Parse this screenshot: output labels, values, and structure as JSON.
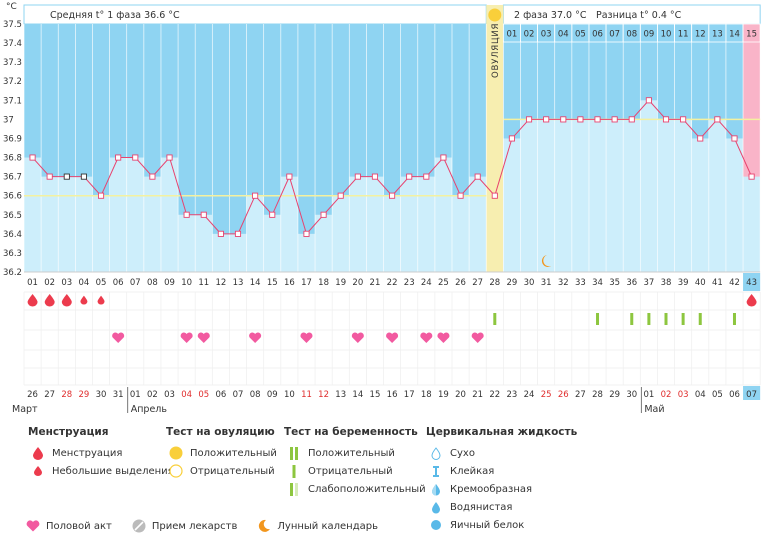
{
  "chart_data": {
    "type": "line",
    "unit_label": "°C",
    "y_ticks": [
      "37.5",
      "37.4",
      "37.3",
      "37.2",
      "37.1",
      "37",
      "36.9",
      "36.8",
      "36.7",
      "36.6",
      "36.5",
      "36.4",
      "36.3",
      "36.2"
    ],
    "ylim": [
      36.2,
      37.5
    ],
    "cycle_days": [
      "01",
      "02",
      "03",
      "04",
      "05",
      "06",
      "07",
      "08",
      "09",
      "10",
      "11",
      "12",
      "13",
      "14",
      "15",
      "16",
      "17",
      "18",
      "19",
      "20",
      "21",
      "22",
      "23",
      "24",
      "25",
      "26",
      "27",
      "28",
      "29",
      "30",
      "31",
      "32",
      "33",
      "34",
      "35",
      "36",
      "37",
      "38",
      "39",
      "40",
      "41",
      "42",
      "43"
    ],
    "temperatures": [
      36.8,
      36.7,
      36.7,
      36.7,
      36.6,
      36.8,
      36.8,
      36.7,
      36.8,
      36.5,
      36.5,
      36.4,
      36.4,
      36.6,
      36.5,
      36.7,
      36.4,
      36.5,
      36.6,
      36.7,
      36.7,
      36.6,
      36.7,
      36.7,
      36.8,
      36.6,
      36.7,
      36.6,
      36.9,
      37.0,
      37.0,
      37.0,
      37.0,
      37.0,
      37.0,
      37.0,
      37.1,
      37.0,
      37.0,
      36.9,
      37.0,
      36.9,
      36.7
    ],
    "phase1": {
      "label": "Средняя t° 1 фаза",
      "value": "36.6 °C",
      "average": 36.6
    },
    "phase2": {
      "label": "2 фаза",
      "value": "37.0 °C",
      "average": 37.0,
      "diff_label": "Разница t°",
      "diff_value": "0.4 °C"
    },
    "ovulation": {
      "label": "ОВУЛЯЦИЯ",
      "day": 28
    },
    "phase2_days": [
      "01",
      "02",
      "03",
      "04",
      "05",
      "06",
      "07",
      "08",
      "09",
      "10",
      "11",
      "12",
      "13",
      "14",
      "15"
    ],
    "calendar_dates": [
      "26",
      "27",
      "28",
      "29",
      "30",
      "31",
      "01",
      "02",
      "03",
      "04",
      "05",
      "06",
      "07",
      "08",
      "09",
      "10",
      "11",
      "12",
      "13",
      "14",
      "15",
      "16",
      "17",
      "18",
      "19",
      "20",
      "21",
      "22",
      "23",
      "24",
      "25",
      "26",
      "27",
      "28",
      "29",
      "30",
      "01",
      "02",
      "03",
      "04",
      "05",
      "06",
      "07"
    ],
    "weekend_dates_idx": [
      2,
      3,
      9,
      10,
      16,
      17,
      30,
      31,
      37,
      38
    ],
    "months": [
      {
        "label": "Март",
        "start": 0
      },
      {
        "label": "Апрель",
        "start": 6
      },
      {
        "label": "Май",
        "start": 36
      }
    ],
    "menstruation": {
      "big": [
        1,
        2,
        3
      ],
      "small": [
        4,
        5
      ],
      "next": [
        43
      ]
    },
    "intercourse": [
      6,
      10,
      11,
      14,
      17,
      20,
      22,
      24,
      25,
      27
    ],
    "pregnancy_tests_negative": [
      28,
      34,
      36,
      37,
      38,
      39,
      40,
      42
    ],
    "moon_day": 31
  },
  "legend": {
    "menstruation": {
      "title": "Менструация",
      "items": [
        "Менструация",
        "Небольшие выделения"
      ]
    },
    "ovulation_test": {
      "title": "Тест на овуляцию",
      "items": [
        "Положительный",
        "Отрицательный"
      ]
    },
    "pregnancy_test": {
      "title": "Тест на беременность",
      "items": [
        "Положительный",
        "Отрицательный",
        "Слабоположительный"
      ]
    },
    "cervical": {
      "title": "Цервикальная жидкость",
      "items": [
        "Сухо",
        "Клейкая",
        "Кремообразная",
        "Водянистая",
        "Яичный белок"
      ]
    },
    "bottom": [
      "Половой акт",
      "Прием лекарств",
      "Лунный календарь"
    ]
  },
  "colors": {
    "phase_blue": "#8fd4f2",
    "bar_fill": "#cdeefb",
    "ovulation": "#f7eeb0",
    "pink": "#f9b4c8",
    "line": "#e8436f",
    "drop": "#ec3b4d",
    "heart": "#f25aa0",
    "test": "#8dc63f"
  }
}
